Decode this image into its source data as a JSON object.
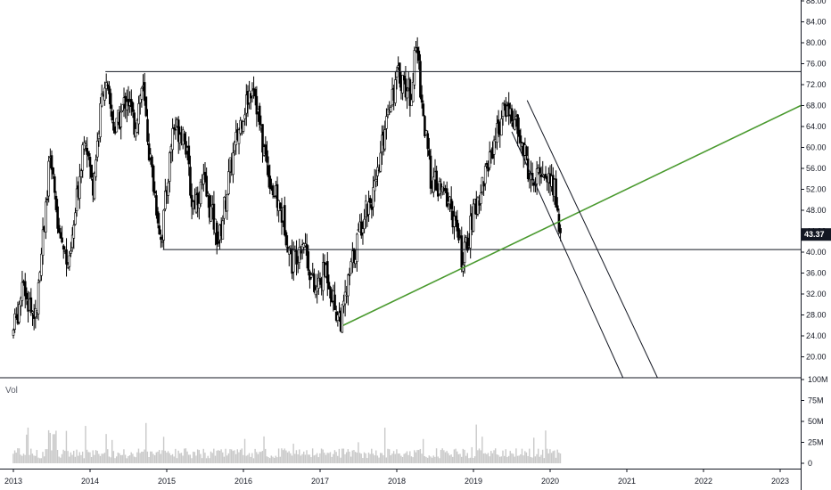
{
  "chart_data": {
    "type": "candlestick",
    "symbol_price_last": "43.37",
    "price_axis": {
      "ylim": [
        16,
        90
      ],
      "ticks": [
        "20.00",
        "24.00",
        "28.00",
        "32.00",
        "36.00",
        "40.00",
        "44.00",
        "48.00",
        "52.00",
        "56.00",
        "60.00",
        "64.00",
        "68.00",
        "72.00",
        "76.00",
        "80.00",
        "84.00",
        "88.00"
      ]
    },
    "time_axis": {
      "ticks": [
        "2013",
        "2014",
        "2015",
        "2016",
        "2017",
        "2018",
        "2019",
        "2020",
        "2021",
        "2022",
        "2023"
      ],
      "xlim": [
        2013.0,
        2023.35
      ]
    },
    "volume_pane": {
      "label": "Vol",
      "ylim": [
        0,
        100
      ],
      "ticks": [
        "100M",
        "75M",
        "50M",
        "25M",
        "0"
      ]
    },
    "price_path": [
      [
        2013.0,
        24
      ],
      [
        2013.15,
        33
      ],
      [
        2013.3,
        27
      ],
      [
        2013.5,
        58
      ],
      [
        2013.6,
        45
      ],
      [
        2013.75,
        37
      ],
      [
        2013.95,
        64
      ],
      [
        2014.05,
        52
      ],
      [
        2014.2,
        73
      ],
      [
        2014.35,
        63
      ],
      [
        2014.5,
        70
      ],
      [
        2014.6,
        64
      ],
      [
        2014.7,
        72
      ],
      [
        2014.8,
        58
      ],
      [
        2014.95,
        42
      ],
      [
        2015.1,
        64
      ],
      [
        2015.25,
        63
      ],
      [
        2015.35,
        49
      ],
      [
        2015.5,
        53
      ],
      [
        2015.7,
        42
      ],
      [
        2015.85,
        56
      ],
      [
        2016.0,
        66
      ],
      [
        2016.15,
        73
      ],
      [
        2016.25,
        62
      ],
      [
        2016.4,
        52
      ],
      [
        2016.55,
        46
      ],
      [
        2016.65,
        38
      ],
      [
        2016.8,
        43
      ],
      [
        2016.95,
        32
      ],
      [
        2017.1,
        37
      ],
      [
        2017.22,
        29
      ],
      [
        2017.3,
        27
      ],
      [
        2017.45,
        39
      ],
      [
        2017.6,
        48
      ],
      [
        2017.75,
        52
      ],
      [
        2017.9,
        68
      ],
      [
        2018.05,
        74
      ],
      [
        2018.2,
        70
      ],
      [
        2018.28,
        80
      ],
      [
        2018.35,
        68
      ],
      [
        2018.45,
        55
      ],
      [
        2018.55,
        52
      ],
      [
        2018.7,
        50
      ],
      [
        2018.8,
        44
      ],
      [
        2018.88,
        38
      ],
      [
        2019.0,
        46
      ],
      [
        2019.15,
        54
      ],
      [
        2019.3,
        62
      ],
      [
        2019.45,
        68
      ],
      [
        2019.55,
        65
      ],
      [
        2019.7,
        58
      ],
      [
        2019.8,
        52
      ],
      [
        2019.9,
        56
      ],
      [
        2020.0,
        54
      ],
      [
        2020.08,
        52
      ],
      [
        2020.15,
        43.4
      ]
    ],
    "horizontal_lines": [
      74.5,
      40.5
    ],
    "horizontal_line_starts": [
      2014.2,
      2014.95
    ],
    "trendline_green": {
      "from": [
        2017.3,
        26
      ],
      "to": [
        2023.35,
        68
      ],
      "color": "#4a9a2f"
    },
    "channel_lines": [
      {
        "from": [
          2019.7,
          69
        ],
        "to": [
          2021.4,
          18
        ]
      },
      {
        "from": [
          2019.5,
          63
        ],
        "to": [
          2020.95,
          18
        ]
      }
    ],
    "colors": {
      "up": "#ffffff",
      "down": "#000000",
      "outline": "#000000",
      "volume": "#c9c9c9",
      "price_tag_bg": "#131722"
    }
  }
}
